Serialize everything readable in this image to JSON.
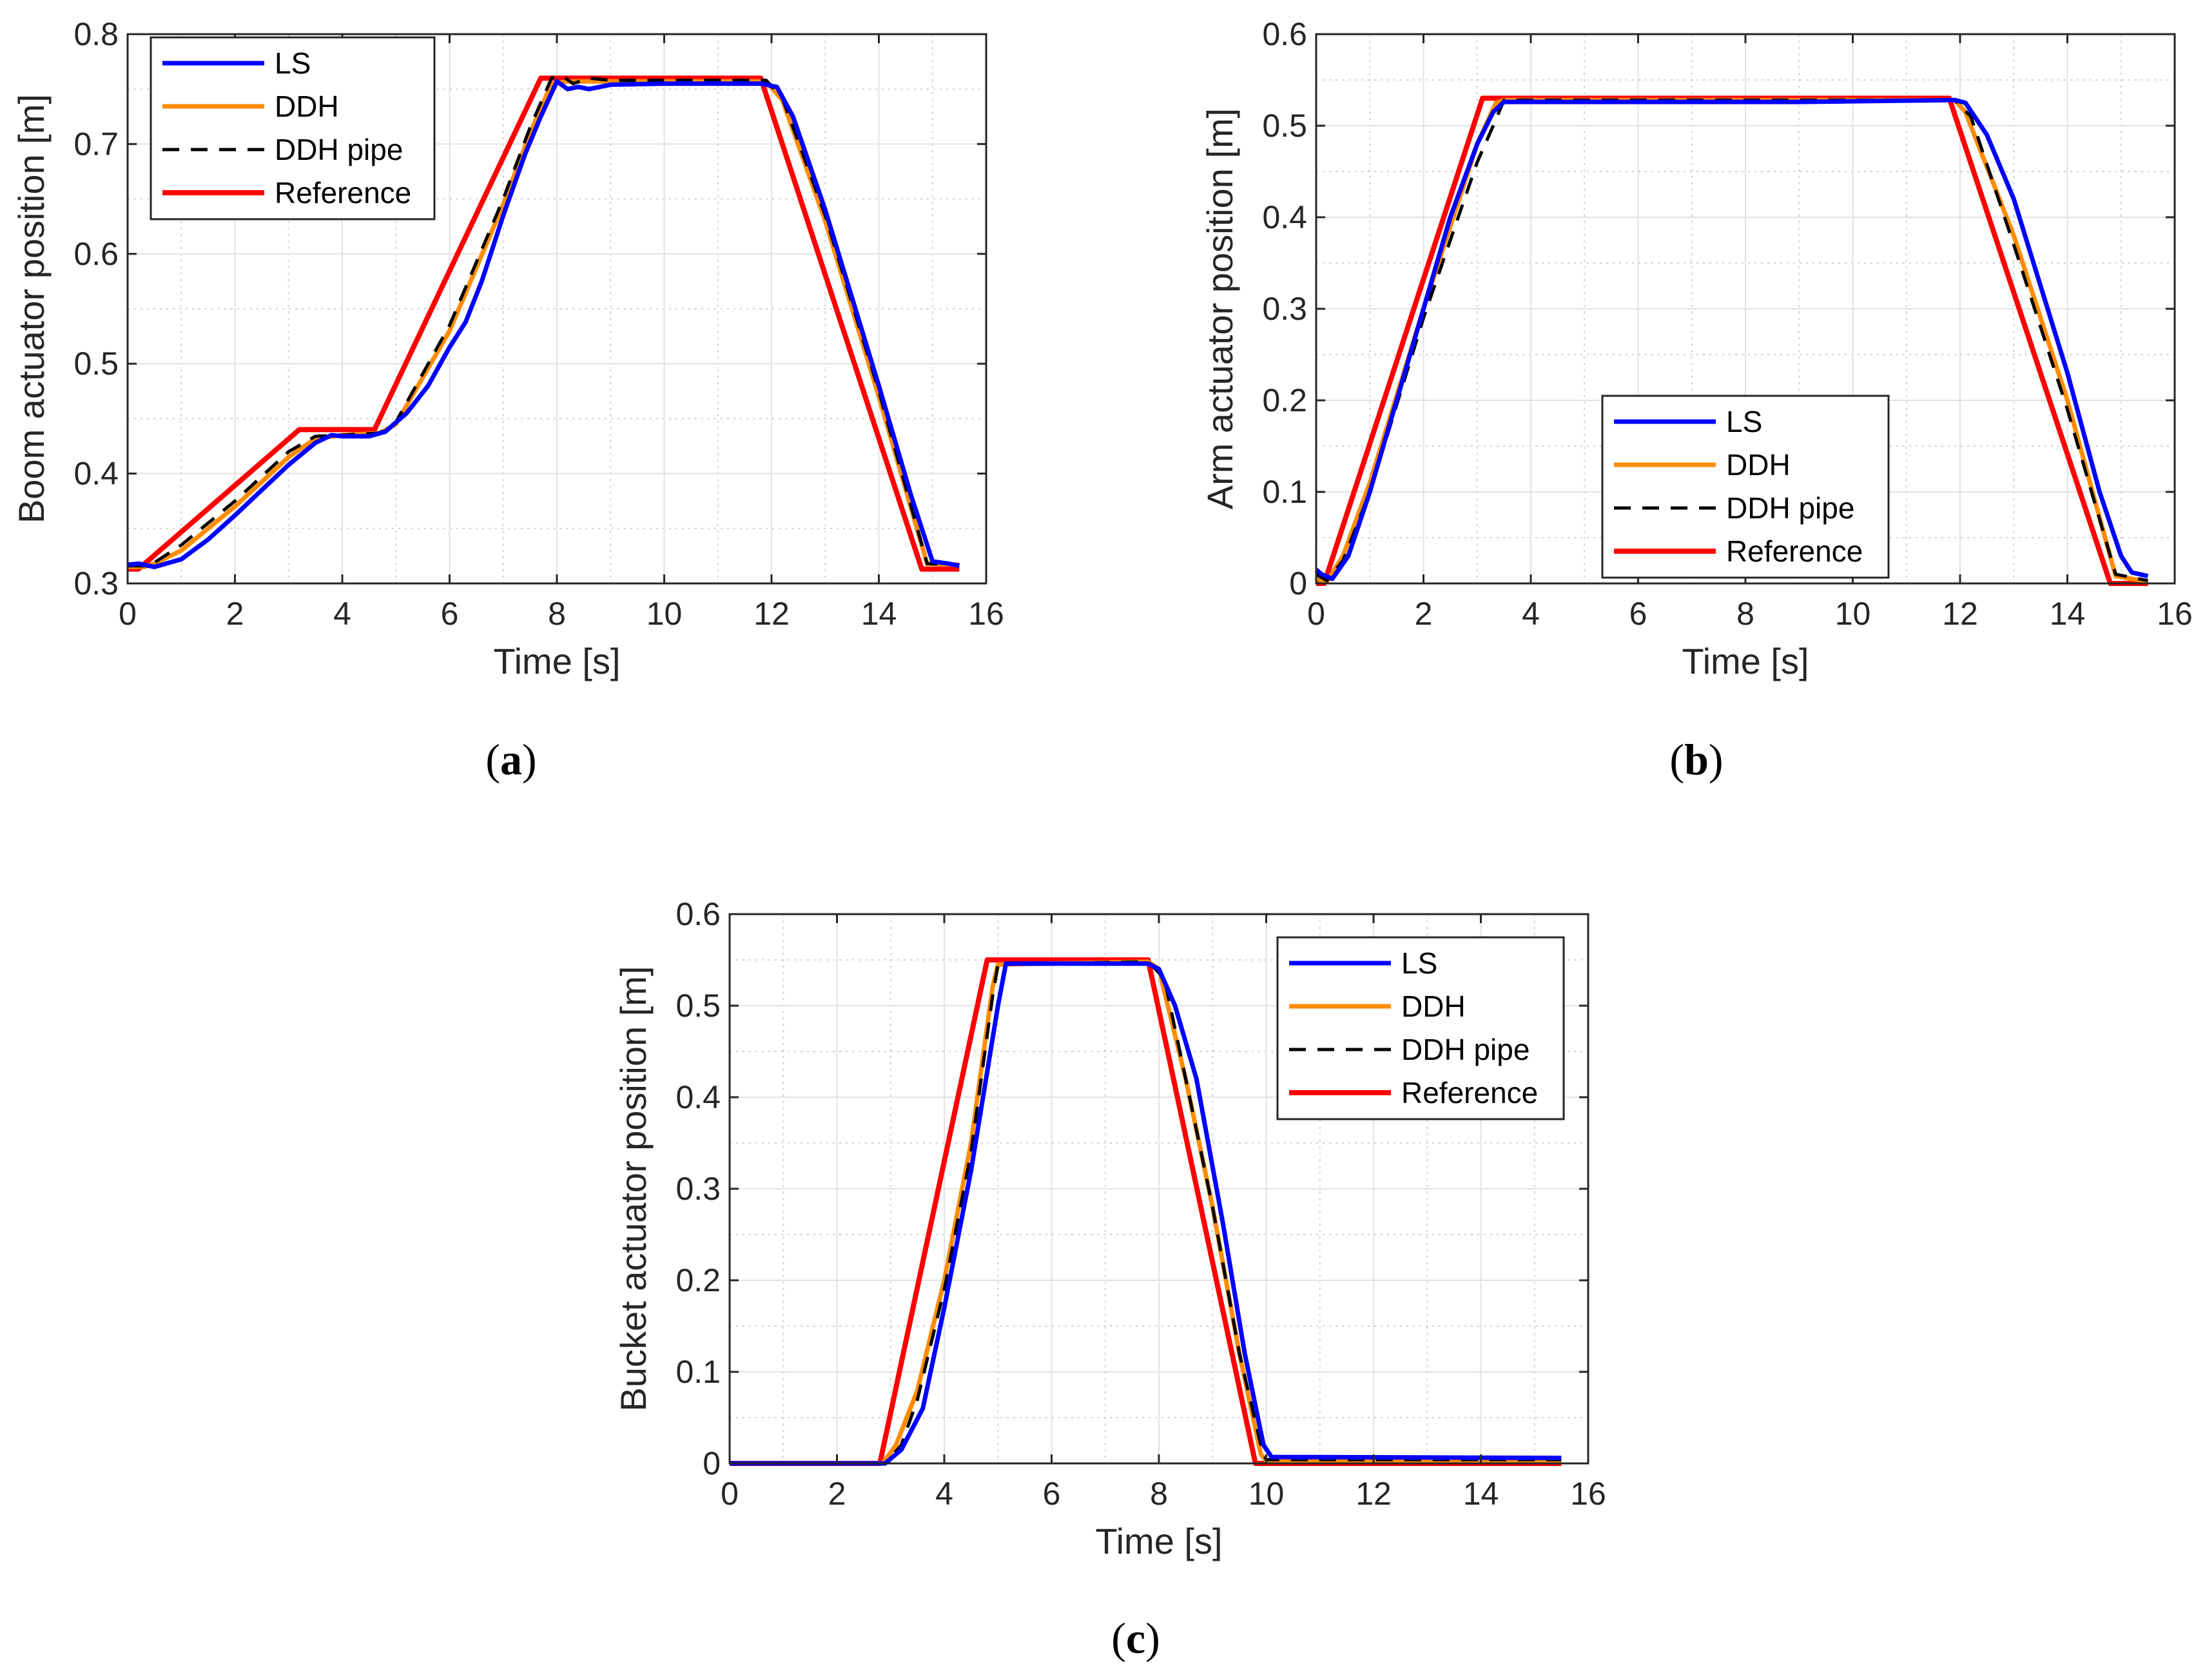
{
  "figure_captions": [
    {
      "open": "(",
      "letter": "a",
      "close": ")"
    },
    {
      "open": "(",
      "letter": "b",
      "close": ")"
    },
    {
      "open": "(",
      "letter": "c",
      "close": ")"
    }
  ],
  "colors": {
    "LS": "#0000ff",
    "DDH": "#ff8c00",
    "DDH pipe": "#000000",
    "Reference": "#ff0000"
  },
  "chart_data": [
    {
      "type": "line",
      "id": "boom",
      "caption": "(a)",
      "xlabel": "Time [s]",
      "ylabel": "Boom actuator position [m]",
      "xlim": [
        0,
        16
      ],
      "ylim": [
        0.3,
        0.8
      ],
      "xticks": [
        0,
        2,
        4,
        6,
        8,
        10,
        12,
        14,
        16
      ],
      "yticks": [
        0.3,
        0.4,
        0.5,
        0.6,
        0.7,
        0.8
      ],
      "yticklabels": [
        "0.3",
        "0.4",
        "0.5",
        "0.6",
        "0.7",
        "0.8"
      ],
      "grid": true,
      "legend_position": "top-left",
      "legend": [
        "LS",
        "DDH",
        "DDH pipe",
        "Reference"
      ],
      "series": [
        {
          "name": "Reference",
          "style": "solid",
          "x": [
            0.0,
            0.2,
            3.2,
            4.6,
            7.7,
            11.8,
            14.8,
            15.5
          ],
          "y": [
            0.313,
            0.313,
            0.44,
            0.44,
            0.76,
            0.76,
            0.313,
            0.313
          ]
        },
        {
          "name": "DDH",
          "style": "solid",
          "x": [
            0.0,
            0.3,
            0.5,
            1.0,
            2.0,
            3.0,
            3.5,
            4.0,
            4.7,
            5.0,
            6.0,
            7.0,
            7.5,
            7.9,
            8.2,
            9.0,
            10.0,
            11.0,
            11.9,
            12.2,
            13.0,
            14.0,
            14.9,
            15.5
          ],
          "y": [
            0.315,
            0.315,
            0.318,
            0.33,
            0.37,
            0.415,
            0.432,
            0.435,
            0.437,
            0.445,
            0.53,
            0.645,
            0.71,
            0.755,
            0.757,
            0.757,
            0.757,
            0.757,
            0.757,
            0.74,
            0.63,
            0.47,
            0.318,
            0.317
          ]
        },
        {
          "name": "DDH pipe",
          "style": "dashed",
          "x": [
            0.0,
            0.3,
            0.5,
            1.0,
            2.0,
            3.0,
            3.5,
            4.0,
            4.7,
            5.0,
            6.0,
            7.0,
            7.5,
            7.9,
            8.1,
            8.3,
            8.6,
            9.0,
            10.0,
            11.0,
            11.9,
            12.2,
            13.0,
            14.0,
            14.9,
            15.5
          ],
          "y": [
            0.316,
            0.316,
            0.319,
            0.335,
            0.375,
            0.42,
            0.434,
            0.435,
            0.437,
            0.447,
            0.535,
            0.65,
            0.715,
            0.76,
            0.762,
            0.755,
            0.76,
            0.758,
            0.758,
            0.758,
            0.758,
            0.742,
            0.635,
            0.475,
            0.318,
            0.317
          ]
        },
        {
          "name": "LS",
          "style": "solid",
          "x": [
            0.0,
            0.2,
            0.5,
            1.0,
            1.5,
            2.0,
            2.5,
            3.0,
            3.5,
            3.8,
            4.0,
            4.5,
            4.8,
            5.2,
            5.6,
            6.0,
            6.3,
            6.6,
            7.0,
            7.4,
            7.7,
            8.0,
            8.2,
            8.4,
            8.6,
            9.0,
            10.0,
            11.0,
            11.8,
            12.1,
            12.4,
            13.0,
            14.0,
            14.6,
            15.0,
            15.3,
            15.5
          ],
          "y": [
            0.317,
            0.318,
            0.315,
            0.322,
            0.34,
            0.362,
            0.385,
            0.408,
            0.428,
            0.435,
            0.434,
            0.434,
            0.438,
            0.455,
            0.48,
            0.515,
            0.538,
            0.575,
            0.635,
            0.69,
            0.725,
            0.757,
            0.75,
            0.752,
            0.75,
            0.754,
            0.755,
            0.755,
            0.755,
            0.752,
            0.725,
            0.64,
            0.48,
            0.38,
            0.32,
            0.318,
            0.316
          ]
        }
      ]
    },
    {
      "type": "line",
      "id": "arm",
      "caption": "(b)",
      "xlabel": "Time [s]",
      "ylabel": "Arm actuator position [m]",
      "xlim": [
        0,
        16
      ],
      "ylim": [
        0,
        0.6
      ],
      "xticks": [
        0,
        2,
        4,
        6,
        8,
        10,
        12,
        14,
        16
      ],
      "yticks": [
        0,
        0.1,
        0.2,
        0.3,
        0.4,
        0.5,
        0.6
      ],
      "yticklabels": [
        "0",
        "0.1",
        "0.2",
        "0.3",
        "0.4",
        "0.5",
        "0.6"
      ],
      "grid": true,
      "legend_position": "lower-center",
      "legend": [
        "LS",
        "DDH",
        "DDH pipe",
        "Reference"
      ],
      "series": [
        {
          "name": "Reference",
          "style": "solid",
          "x": [
            0.0,
            0.15,
            3.1,
            11.8,
            14.8,
            15.5
          ],
          "y": [
            0.0,
            0.0,
            0.53,
            0.53,
            0.0,
            0.0
          ]
        },
        {
          "name": "DDH",
          "style": "solid",
          "x": [
            0.0,
            0.2,
            0.5,
            1.0,
            2.0,
            3.0,
            3.35,
            3.5,
            6.0,
            9.0,
            11.9,
            12.1,
            13.0,
            14.0,
            14.9,
            15.5
          ],
          "y": [
            0.005,
            0.002,
            0.03,
            0.11,
            0.3,
            0.48,
            0.525,
            0.528,
            0.528,
            0.528,
            0.528,
            0.515,
            0.38,
            0.2,
            0.008,
            0.002
          ]
        },
        {
          "name": "DDH pipe",
          "style": "dashed",
          "x": [
            0.0,
            0.2,
            0.5,
            1.0,
            2.0,
            3.0,
            3.3,
            3.5,
            6.0,
            9.0,
            11.9,
            12.2,
            13.0,
            14.0,
            14.9,
            15.5
          ],
          "y": [
            0.01,
            0.003,
            0.025,
            0.1,
            0.29,
            0.46,
            0.5,
            0.528,
            0.528,
            0.528,
            0.528,
            0.51,
            0.37,
            0.19,
            0.01,
            0.003
          ]
        },
        {
          "name": "LS",
          "style": "solid",
          "x": [
            0.0,
            0.1,
            0.3,
            0.6,
            1.0,
            1.5,
            2.0,
            2.5,
            3.0,
            3.3,
            3.5,
            6.0,
            9.0,
            11.9,
            12.1,
            12.5,
            13.0,
            14.0,
            14.6,
            15.0,
            15.2,
            15.5
          ],
          "y": [
            0.015,
            0.01,
            0.005,
            0.03,
            0.1,
            0.2,
            0.3,
            0.4,
            0.48,
            0.515,
            0.526,
            0.526,
            0.526,
            0.528,
            0.525,
            0.49,
            0.42,
            0.23,
            0.1,
            0.03,
            0.012,
            0.008
          ]
        }
      ]
    },
    {
      "type": "line",
      "id": "bucket",
      "caption": "(c)",
      "xlabel": "Time [s]",
      "ylabel": "Bucket actuator position [m]",
      "xlim": [
        0,
        16
      ],
      "ylim": [
        0,
        0.6
      ],
      "xticks": [
        0,
        2,
        4,
        6,
        8,
        10,
        12,
        14,
        16
      ],
      "yticks": [
        0,
        0.1,
        0.2,
        0.3,
        0.4,
        0.5,
        0.6
      ],
      "yticklabels": [
        "0",
        "0.1",
        "0.2",
        "0.3",
        "0.4",
        "0.5",
        "0.6"
      ],
      "grid": true,
      "legend_position": "top-right",
      "legend": [
        "LS",
        "DDH",
        "DDH pipe",
        "Reference"
      ],
      "series": [
        {
          "name": "Reference",
          "style": "solid",
          "x": [
            0.0,
            2.8,
            4.8,
            7.8,
            9.8,
            15.5
          ],
          "y": [
            0.0,
            0.0,
            0.55,
            0.55,
            0.0,
            0.0
          ]
        },
        {
          "name": "DDH",
          "style": "solid",
          "x": [
            0.0,
            2.85,
            3.1,
            3.5,
            4.0,
            4.5,
            4.9,
            5.0,
            7.8,
            8.0,
            8.5,
            9.0,
            9.5,
            9.9,
            10.0,
            15.5
          ],
          "y": [
            0.0,
            0.0,
            0.02,
            0.08,
            0.2,
            0.35,
            0.52,
            0.545,
            0.548,
            0.54,
            0.42,
            0.28,
            0.12,
            0.01,
            0.003,
            0.003
          ]
        },
        {
          "name": "DDH pipe",
          "style": "dashed",
          "x": [
            0.0,
            2.9,
            3.2,
            3.5,
            4.0,
            4.5,
            4.9,
            5.0,
            7.8,
            8.1,
            8.5,
            9.0,
            9.5,
            9.9,
            10.0,
            15.5
          ],
          "y": [
            0.0,
            0.0,
            0.02,
            0.07,
            0.19,
            0.34,
            0.51,
            0.545,
            0.548,
            0.53,
            0.42,
            0.28,
            0.12,
            0.02,
            0.004,
            0.004
          ]
        },
        {
          "name": "LS",
          "style": "solid",
          "x": [
            0.0,
            2.9,
            3.2,
            3.6,
            4.0,
            4.5,
            5.0,
            5.15,
            7.8,
            8.0,
            8.3,
            8.7,
            9.2,
            9.6,
            9.95,
            10.1,
            15.5
          ],
          "y": [
            0.0,
            0.0,
            0.015,
            0.06,
            0.17,
            0.32,
            0.5,
            0.546,
            0.546,
            0.54,
            0.5,
            0.42,
            0.26,
            0.12,
            0.02,
            0.007,
            0.006
          ]
        }
      ]
    }
  ]
}
